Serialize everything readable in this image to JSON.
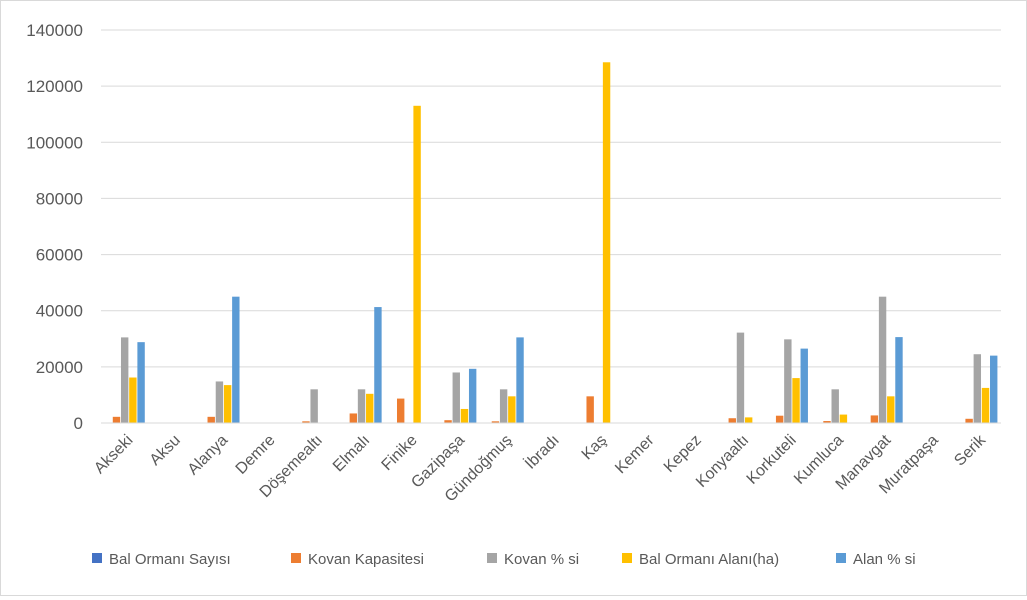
{
  "chart_data": {
    "type": "bar",
    "categories": [
      "Akseki",
      "Aksu",
      "Alanya",
      "Demre",
      "Döşemealtı",
      "Elmalı",
      "Finike",
      "Gazipaşa",
      "Gündoğmuş",
      "İbradı",
      "Kaş",
      "Kemer",
      "Kepez",
      "Konyaaltı",
      "Korkuteli",
      "Kumluca",
      "Manavgat",
      "Muratpaşa",
      "Serik"
    ],
    "series": [
      {
        "name": "Bal Ormanı Sayısı",
        "color": "#4472c4",
        "values": [
          4,
          0,
          3,
          0,
          1,
          5,
          2,
          3,
          3,
          0,
          2,
          0,
          0,
          2,
          4,
          2,
          5,
          0,
          3
        ]
      },
      {
        "name": "Kovan Kapasitesi",
        "color": "#ed7d31",
        "values": [
          2200,
          0,
          2200,
          0,
          600,
          3400,
          8700,
          1000,
          600,
          0,
          9500,
          0,
          0,
          1700,
          2600,
          700,
          2700,
          0,
          1500
        ]
      },
      {
        "name": "Kovan % si",
        "color": "#a5a5a5",
        "values": [
          30500,
          0,
          14800,
          0,
          12000,
          12000,
          0,
          18000,
          12000,
          0,
          0,
          0,
          0,
          32200,
          29800,
          12000,
          45000,
          0,
          24500
        ]
      },
      {
        "name": "Bal Ormanı Alanı(ha)",
        "color": "#ffc000",
        "values": [
          16200,
          0,
          13500,
          0,
          0,
          10400,
          113000,
          5000,
          9500,
          0,
          128500,
          0,
          0,
          2000,
          16000,
          3000,
          9500,
          0,
          12500
        ]
      },
      {
        "name": "Alan % si",
        "color": "#5b9bd5",
        "values": [
          28800,
          0,
          45000,
          0,
          0,
          41300,
          0,
          19300,
          30500,
          0,
          0,
          0,
          0,
          0,
          26500,
          0,
          30600,
          0,
          24000
        ]
      }
    ],
    "y_ticks": [
      "0",
      "20000",
      "40000",
      "60000",
      "80000",
      "100000",
      "120000",
      "140000"
    ],
    "ylim": [
      0,
      140000
    ],
    "grid": true,
    "legend_position": "bottom"
  }
}
